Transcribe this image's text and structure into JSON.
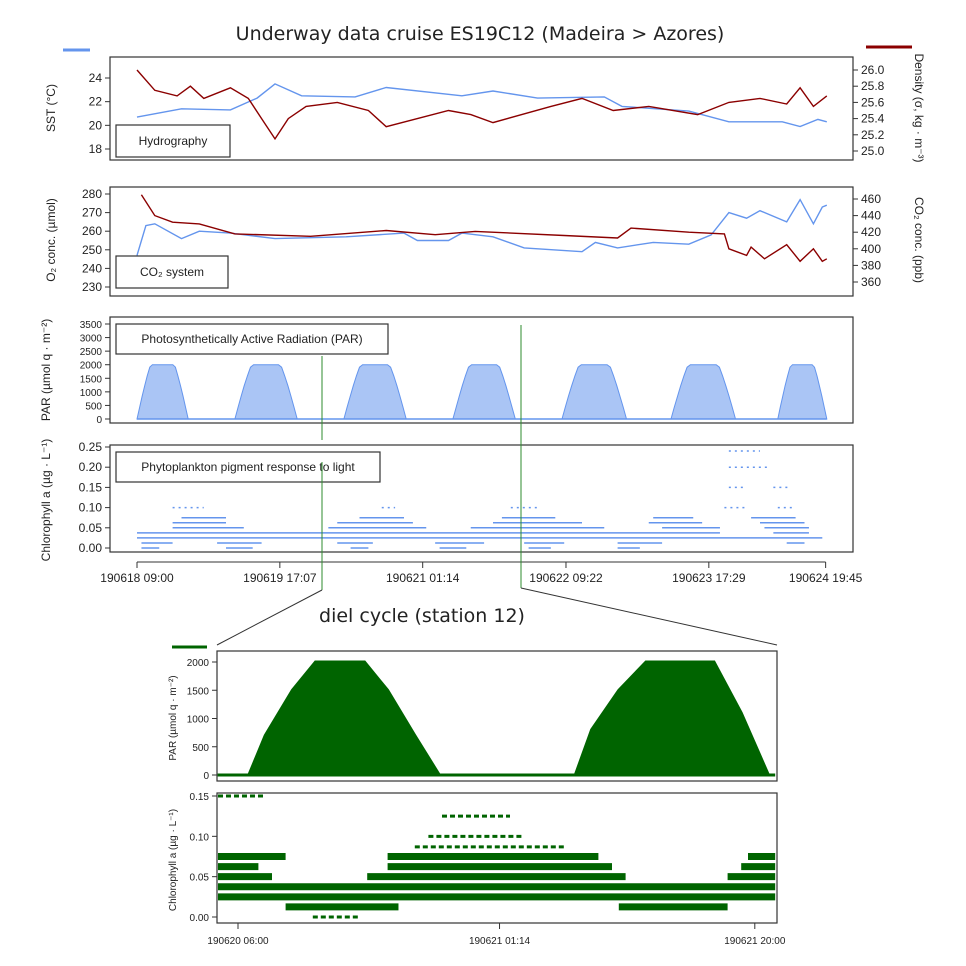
{
  "chart_data": [
    {
      "type": "line",
      "panel": "Hydrography",
      "title": "Underway data cruise ES19C12 (Madeira > Azores)",
      "x_unit": "hours since 190618 09:00",
      "x_tick_hours": [
        0,
        32.1,
        64.2,
        96.4,
        128.5,
        154.75
      ],
      "x_tick_labels": [
        "190618 09:00",
        "190619 17:07",
        "190621 01:14",
        "190622 09:22",
        "190623 17:29",
        "190624 19:45"
      ],
      "ylabel_left": "SST (°C)",
      "ylabel_right": "Density (σ, kg · m⁻³)",
      "yticks_left": [
        "18",
        "20",
        "22",
        "24"
      ],
      "yticks_right": [
        "25.0",
        "25.2",
        "25.4",
        "25.6",
        "25.8",
        "26.0"
      ],
      "series": [
        {
          "name": "SST",
          "axis": "left",
          "color": "#6495ED",
          "x": [
            0,
            10,
            21,
            27,
            31,
            37,
            49,
            56,
            73,
            80,
            90,
            105,
            109,
            124,
            133,
            145,
            149,
            153,
            155
          ],
          "y": [
            20.7,
            21.4,
            21.3,
            22.3,
            23.5,
            22.5,
            22.4,
            23.2,
            22.5,
            22.9,
            22.3,
            22.4,
            21.6,
            21.2,
            20.3,
            20.3,
            19.9,
            20.5,
            20.3
          ]
        },
        {
          "name": "Density",
          "axis": "right",
          "color": "#8B0000",
          "x": [
            0,
            4,
            9,
            12,
            15,
            21,
            25,
            28,
            31,
            34,
            38,
            45,
            52,
            56,
            70,
            75,
            80,
            93,
            100,
            107,
            115,
            126,
            133,
            140,
            146,
            149,
            152,
            155
          ],
          "y": [
            26.0,
            25.75,
            25.68,
            25.8,
            25.65,
            25.78,
            25.65,
            25.4,
            25.15,
            25.4,
            25.55,
            25.6,
            25.5,
            25.3,
            25.5,
            25.45,
            25.35,
            25.55,
            25.65,
            25.5,
            25.55,
            25.45,
            25.6,
            25.65,
            25.58,
            25.78,
            25.55,
            25.68
          ]
        }
      ]
    },
    {
      "type": "line",
      "panel": "CO2 system",
      "legend_label": "CO₂ system",
      "ylabel_left": "O₂ conc. (µmol)",
      "ylabel_right": "CO₂ conc. (ppb)",
      "yticks_left": [
        "230",
        "240",
        "250",
        "260",
        "270",
        "280"
      ],
      "yticks_right": [
        "360",
        "380",
        "400",
        "420",
        "440",
        "460"
      ],
      "series": [
        {
          "name": "O2",
          "axis": "left",
          "color": "#6495ED",
          "x": [
            0,
            2,
            4,
            10,
            14,
            21,
            31,
            47,
            60,
            63,
            70,
            73,
            80,
            87,
            100,
            103,
            108,
            116,
            124,
            129,
            133,
            137,
            140,
            146,
            149,
            152,
            154,
            155
          ],
          "y": [
            247,
            263,
            264,
            256,
            260,
            259,
            256,
            257,
            259,
            255,
            255,
            259,
            257,
            251,
            249,
            254,
            251,
            254,
            253,
            258,
            270,
            267,
            271,
            265,
            277,
            264,
            273,
            274
          ]
        },
        {
          "name": "CO2",
          "axis": "right",
          "color": "#8B0000",
          "x": [
            1,
            4,
            8,
            14,
            22,
            39,
            56,
            67,
            76,
            96,
            108,
            111,
            124,
            132,
            133,
            137,
            138,
            141,
            146,
            149,
            152,
            154,
            155
          ],
          "y": [
            465,
            440,
            432,
            430,
            418,
            415,
            422,
            417,
            421,
            416,
            413,
            425,
            420,
            418,
            400,
            392,
            402,
            388,
            405,
            385,
            400,
            385,
            388
          ]
        }
      ]
    },
    {
      "type": "area",
      "panel": "Photosynthetically Active Radiation (PAR)",
      "ylabel": "PAR (µmol q · m⁻²)",
      "yticks": [
        "0",
        "500",
        "1000",
        "1500",
        "2000",
        "2500",
        "3000",
        "3500"
      ],
      "color": "#6495ED",
      "days": [
        {
          "start": 0,
          "end": 11.5,
          "peak": 2000
        },
        {
          "start": 22,
          "end": 36,
          "peak": 2000
        },
        {
          "start": 46.5,
          "end": 60.5,
          "peak": 2000
        },
        {
          "start": 71,
          "end": 85,
          "peak": 2000
        },
        {
          "start": 95.5,
          "end": 110,
          "peak": 2000
        },
        {
          "start": 120,
          "end": 134.5,
          "peak": 2000
        },
        {
          "start": 144,
          "end": 155,
          "peak": 2000
        }
      ]
    },
    {
      "type": "scatter",
      "panel": "Phytoplankton pigment response to light",
      "ylabel": "Chlorophyll a (µg · L⁻¹)",
      "yticks": [
        "0.00",
        "0.05",
        "0.10",
        "0.15",
        "0.20",
        "0.25"
      ],
      "color": "#6495ED",
      "bands": [
        [
          0.0,
          1,
          5
        ],
        [
          0.0,
          20,
          26
        ],
        [
          0.0,
          48,
          52
        ],
        [
          0.0,
          68,
          74
        ],
        [
          0.0,
          88,
          93
        ],
        [
          0.0,
          108,
          113
        ],
        [
          0.0125,
          1,
          8
        ],
        [
          0.0125,
          18,
          28
        ],
        [
          0.0125,
          45,
          53
        ],
        [
          0.0125,
          67,
          78
        ],
        [
          0.0125,
          87,
          96
        ],
        [
          0.0125,
          108,
          118
        ],
        [
          0.0125,
          146,
          150
        ],
        [
          0.025,
          0,
          154
        ],
        [
          0.0375,
          0,
          131
        ],
        [
          0.0375,
          143,
          151
        ],
        [
          0.05,
          8,
          24
        ],
        [
          0.05,
          43,
          65
        ],
        [
          0.05,
          75,
          105
        ],
        [
          0.05,
          118,
          131
        ],
        [
          0.05,
          141,
          151
        ],
        [
          0.0625,
          8,
          20
        ],
        [
          0.0625,
          45,
          62
        ],
        [
          0.0625,
          80,
          100
        ],
        [
          0.0625,
          115,
          127
        ],
        [
          0.0625,
          140,
          150
        ],
        [
          0.075,
          10,
          20
        ],
        [
          0.075,
          50,
          60
        ],
        [
          0.075,
          82,
          94
        ],
        [
          0.075,
          116,
          125
        ],
        [
          0.075,
          138,
          148
        ],
        [
          0.1,
          8,
          15
        ],
        [
          0.1,
          55,
          58
        ],
        [
          0.1,
          84,
          90
        ],
        [
          0.1,
          132,
          137
        ],
        [
          0.1,
          144,
          148
        ],
        [
          0.15,
          133,
          137
        ],
        [
          0.15,
          143,
          147
        ],
        [
          0.2,
          133,
          142
        ],
        [
          0.24,
          133,
          140
        ]
      ]
    },
    {
      "type": "area",
      "panel": "diel cycle (station 12) PAR",
      "subtitle": "diel cycle (station 12)",
      "x_unit": "hours since 190620 06:00",
      "x_tick_hours": [
        0,
        19.23,
        38
      ],
      "x_tick_labels": [
        "190620 06:00",
        "190621 01:14",
        "190621 20:00"
      ],
      "ylabel": "PAR (µmol q · m⁻²)",
      "yticks": [
        "0",
        "500",
        "1000",
        "1500",
        "2000"
      ],
      "color": "#006400",
      "x": [
        -1.5,
        0.8,
        2,
        4,
        5.7,
        9.3,
        11,
        13,
        14.8,
        24.8,
        26,
        28,
        30,
        35,
        37,
        39,
        39.5
      ],
      "y": [
        0,
        0,
        700,
        1500,
        2000,
        2000,
        1500,
        700,
        0,
        0,
        800,
        1500,
        2000,
        2000,
        1100,
        0,
        0
      ]
    },
    {
      "type": "scatter",
      "panel": "diel cycle (station 12) Chlorophyll",
      "ylabel": "Chlorophyll a (µg · L⁻¹)",
      "yticks": [
        "0.00",
        "0.05",
        "0.10",
        "0.15"
      ],
      "color": "#006400",
      "bands": [
        [
          0.0,
          5.5,
          9
        ],
        [
          0.0125,
          3.5,
          11.8
        ],
        [
          0.0125,
          28,
          36
        ],
        [
          0.025,
          -1.5,
          39.5
        ],
        [
          0.0375,
          -1.5,
          39.5
        ],
        [
          0.05,
          -1.5,
          2.5
        ],
        [
          0.05,
          9.5,
          28.5
        ],
        [
          0.05,
          36,
          39.5
        ],
        [
          0.0625,
          -1.5,
          1.5
        ],
        [
          0.0625,
          11,
          27.5
        ],
        [
          0.0625,
          37,
          39.5
        ],
        [
          0.075,
          -1.5,
          3.5
        ],
        [
          0.075,
          11,
          26.5
        ],
        [
          0.075,
          37.5,
          39.5
        ],
        [
          0.087,
          13,
          24
        ],
        [
          0.1,
          14,
          21
        ],
        [
          0.125,
          15,
          20
        ],
        [
          0.15,
          -1.5,
          2
        ]
      ]
    }
  ]
}
